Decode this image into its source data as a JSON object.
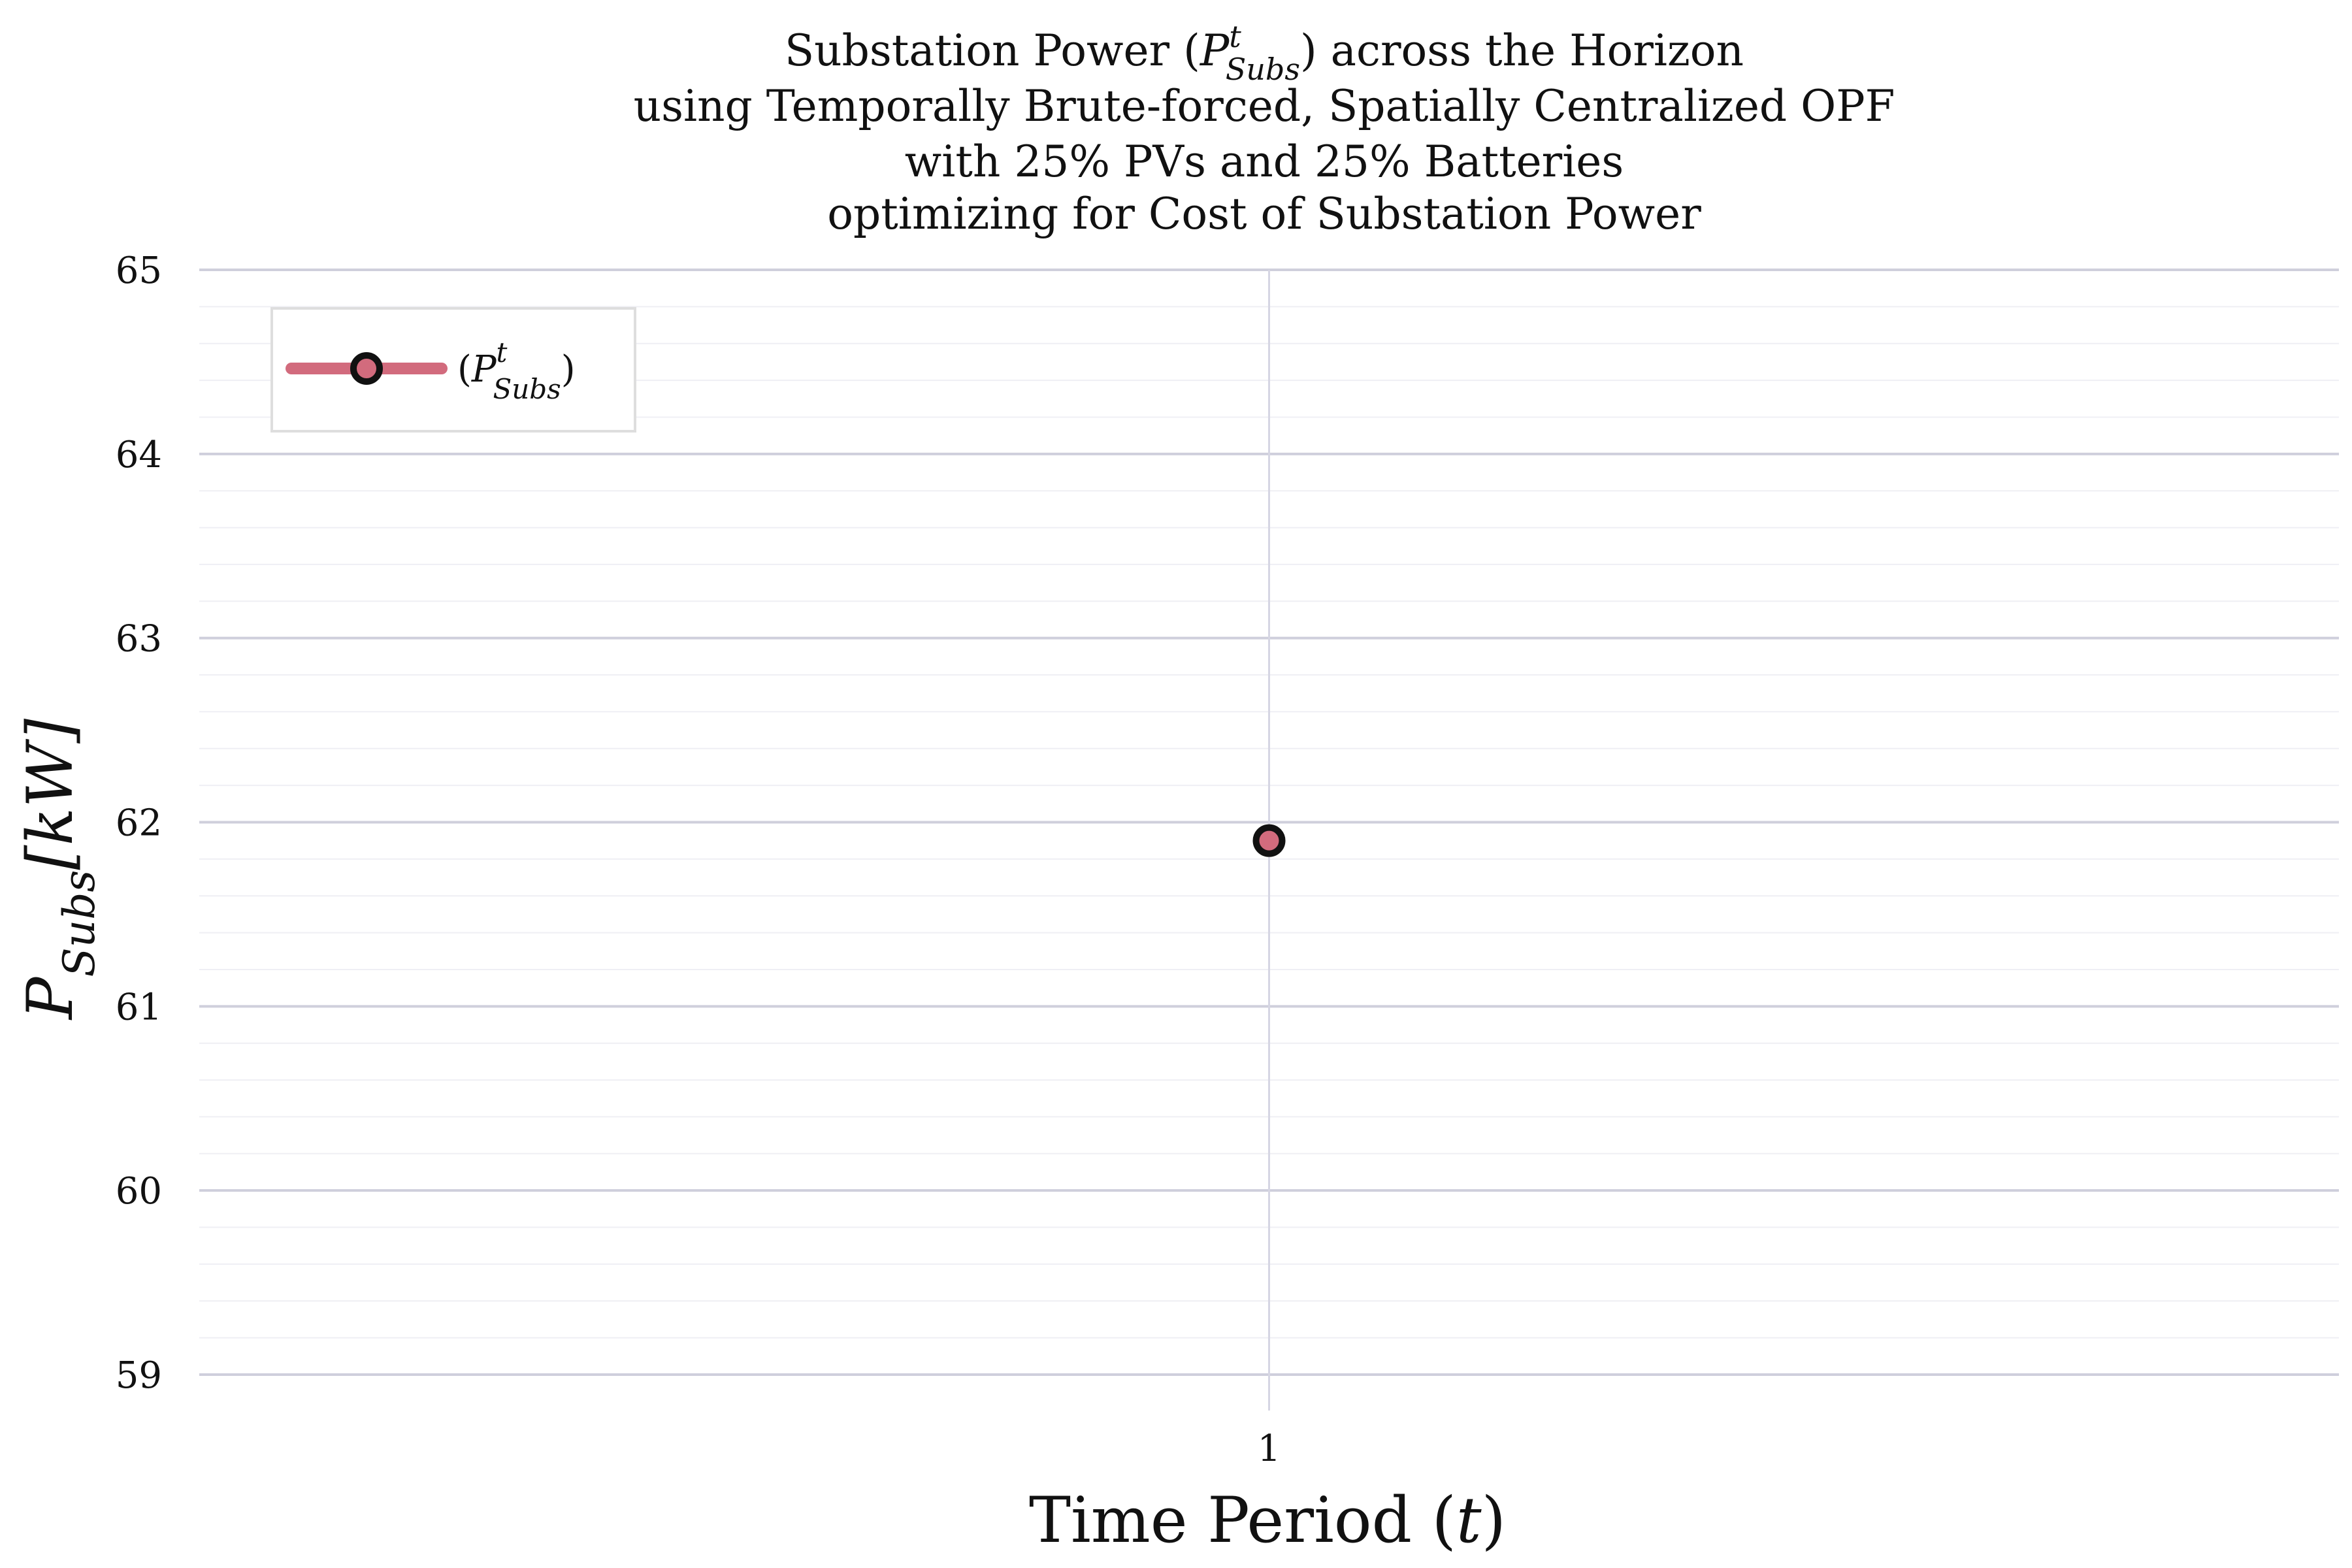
{
  "chart_data": {
    "type": "line",
    "title": {
      "line1_prefix": "Substation Power (",
      "line1_symbol": "P",
      "line1_sup": "t",
      "line1_sub": "Subs",
      "line1_suffix": ") across the Horizon",
      "line2": "using Temporally Brute-forced, Spatially Centralized OPF",
      "line3": "with 25% PVs and 25% Batteries",
      "line4": "optimizing for Cost of Substation Power"
    },
    "xlabel": {
      "text": "Time Period (",
      "symbol": "t",
      "suffix": ")"
    },
    "ylabel": {
      "symbol": "P",
      "sub": "Subs",
      "unit": "[kW]"
    },
    "x_ticks": [
      "1"
    ],
    "y_ticks": [
      "59",
      "60",
      "61",
      "62",
      "63",
      "64",
      "65"
    ],
    "ylim": [
      59,
      65
    ],
    "x_categories": [
      1
    ],
    "series": [
      {
        "name_prefix": "(",
        "name_symbol": "P",
        "name_sup": "t",
        "name_sub": "Subs",
        "name_suffix": ")",
        "x": [
          1
        ],
        "values": [
          61.9
        ]
      }
    ],
    "legend_position": "top-left",
    "grid": true,
    "colors": {
      "series_line": "#d26b7d",
      "marker_fill": "#d26b7d",
      "marker_edge": "#111111",
      "major_grid": "#cfcfdc",
      "minor_grid": "#efeff4",
      "vertical_grid": "#d6d6e3"
    }
  }
}
